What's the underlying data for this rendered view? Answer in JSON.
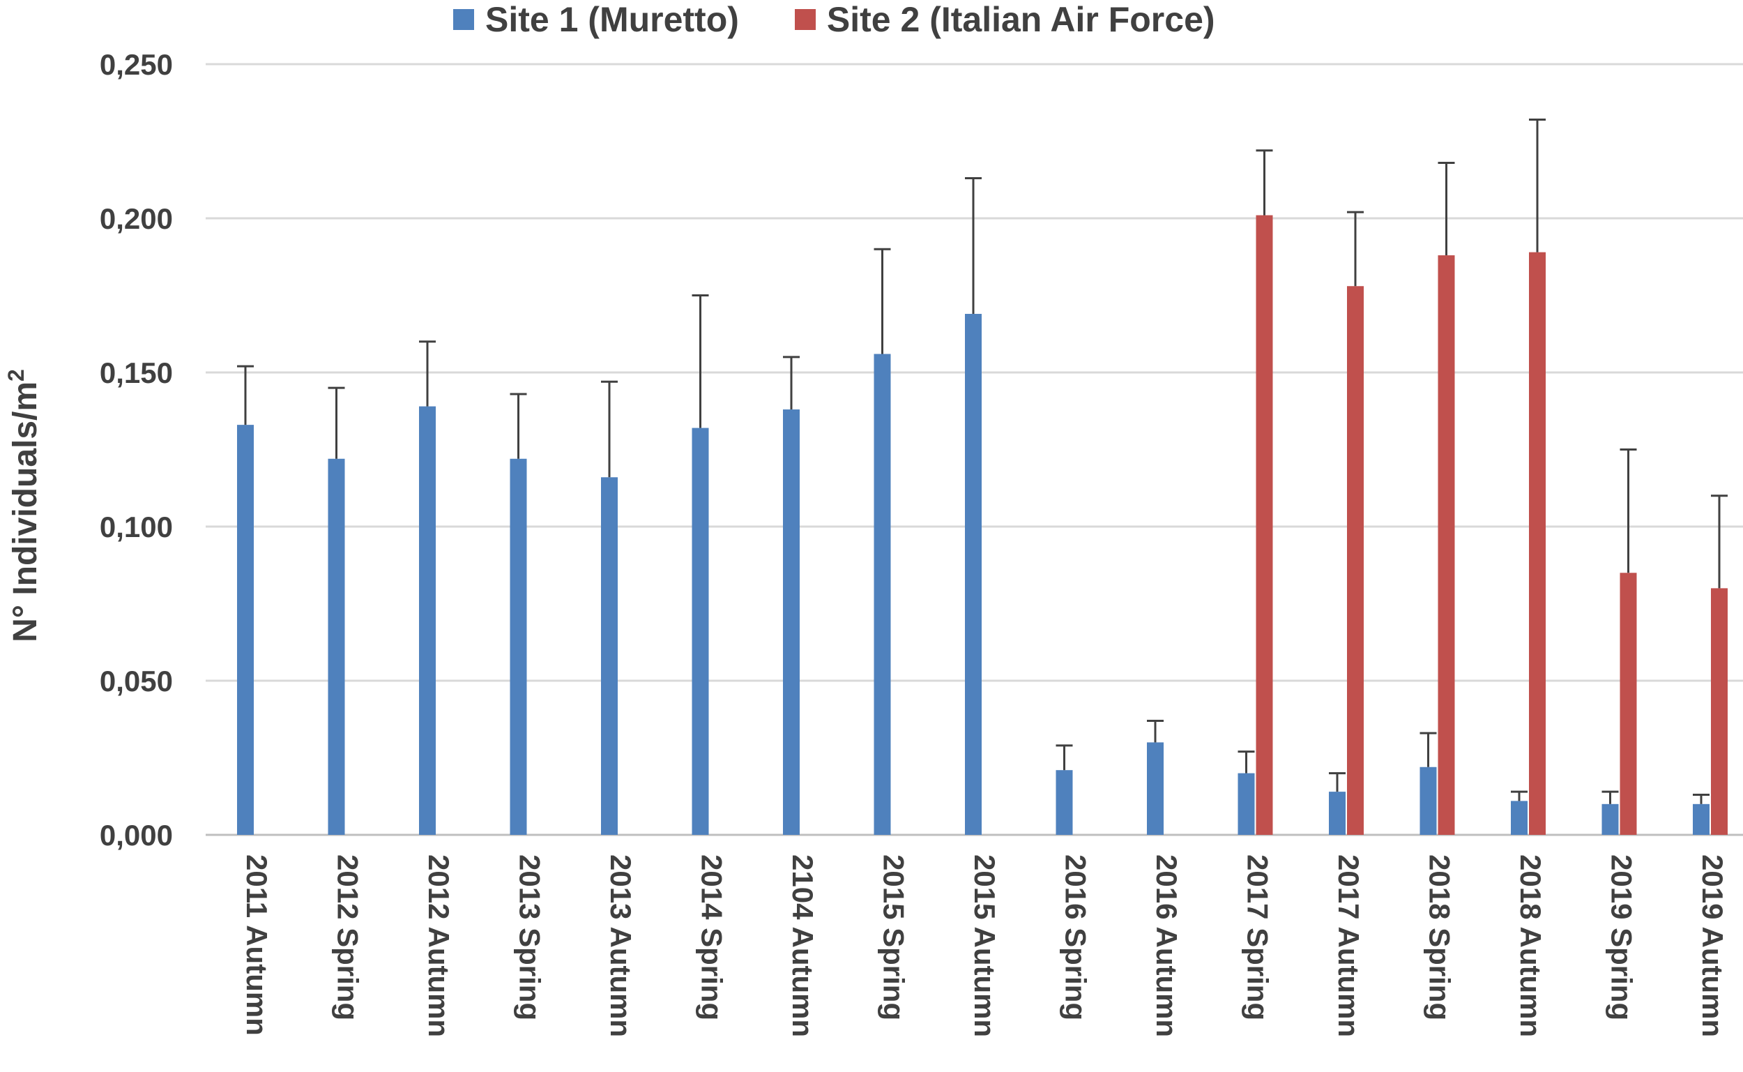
{
  "chart_data": {
    "type": "bar",
    "title": "",
    "xlabel": "",
    "ylabel": "N° Individuals/m",
    "ylabel_superscript": "2",
    "ylim": [
      0,
      0.25
    ],
    "y_ticks": [
      0,
      0.05,
      0.1,
      0.15,
      0.2,
      0.25
    ],
    "y_tick_labels": [
      "0,000",
      "0,050",
      "0,100",
      "0,150",
      "0,200",
      "0,250"
    ],
    "grid": true,
    "legend_position": "top",
    "error_bars": true,
    "categories": [
      "2011 Autumn",
      "2012 Spring",
      "2012 Autumn",
      "2013 Spring",
      "2013 Autumn",
      "2014 Spring",
      "2104 Autumn",
      "2015 Spring",
      "2015 Autumn",
      "2016 Spring",
      "2016 Autumn",
      "2017 Spring",
      "2017 Autumn",
      "2018 Spring",
      "2018 Autumn",
      "2019 Spring",
      "2019 Autumn"
    ],
    "series": [
      {
        "name": "Site 1 (Muretto)",
        "color": "#4f81bd",
        "values": [
          0.133,
          0.122,
          0.139,
          0.122,
          0.116,
          0.132,
          0.138,
          0.156,
          0.169,
          0.021,
          0.03,
          0.02,
          0.014,
          0.022,
          0.011,
          0.01,
          0.01
        ],
        "errors": [
          0.019,
          0.023,
          0.021,
          0.021,
          0.031,
          0.043,
          0.017,
          0.034,
          0.044,
          0.008,
          0.007,
          0.007,
          0.006,
          0.011,
          0.003,
          0.004,
          0.003
        ]
      },
      {
        "name": "Site 2 (Italian Air Force)",
        "color": "#c0504d",
        "values": [
          null,
          null,
          null,
          null,
          null,
          null,
          null,
          null,
          null,
          null,
          null,
          0.201,
          0.178,
          0.188,
          0.189,
          0.085,
          0.08
        ],
        "errors": [
          null,
          null,
          null,
          null,
          null,
          null,
          null,
          null,
          null,
          null,
          null,
          0.021,
          0.024,
          0.03,
          0.043,
          0.04,
          0.03
        ]
      }
    ]
  },
  "colors": {
    "grid": "#d9d9d9",
    "axis": "#bfbfbf",
    "text": "#404040",
    "error_bar": "#404040"
  }
}
